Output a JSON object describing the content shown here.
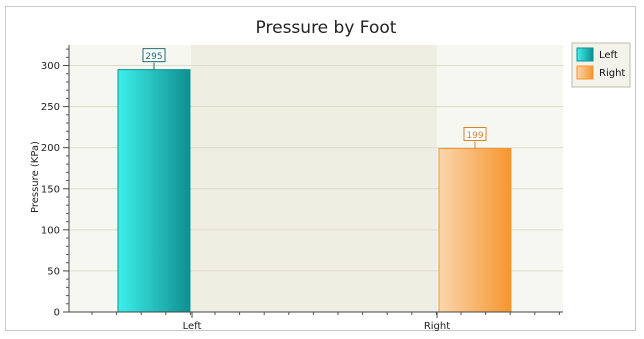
{
  "chart_data": {
    "type": "bar",
    "title": "Pressure by Foot",
    "xlabel": "",
    "ylabel": "Pressure (KPa)",
    "categories": [
      "Left",
      "Right"
    ],
    "series": [
      {
        "name": "Left",
        "category": "Left",
        "value": 295,
        "color": "#0f8f8f",
        "color_light": "#3df0ec",
        "label_color": "#1a6e6e"
      },
      {
        "name": "Right",
        "category": "Right",
        "value": 199,
        "color": "#f5962e",
        "color_light": "#fcd5ad",
        "label_color": "#d9822b"
      }
    ],
    "ylim": [
      0,
      325
    ],
    "yticks": [
      0,
      50,
      100,
      150,
      200,
      250,
      300
    ],
    "grid": true,
    "legend_position": "top-right"
  }
}
